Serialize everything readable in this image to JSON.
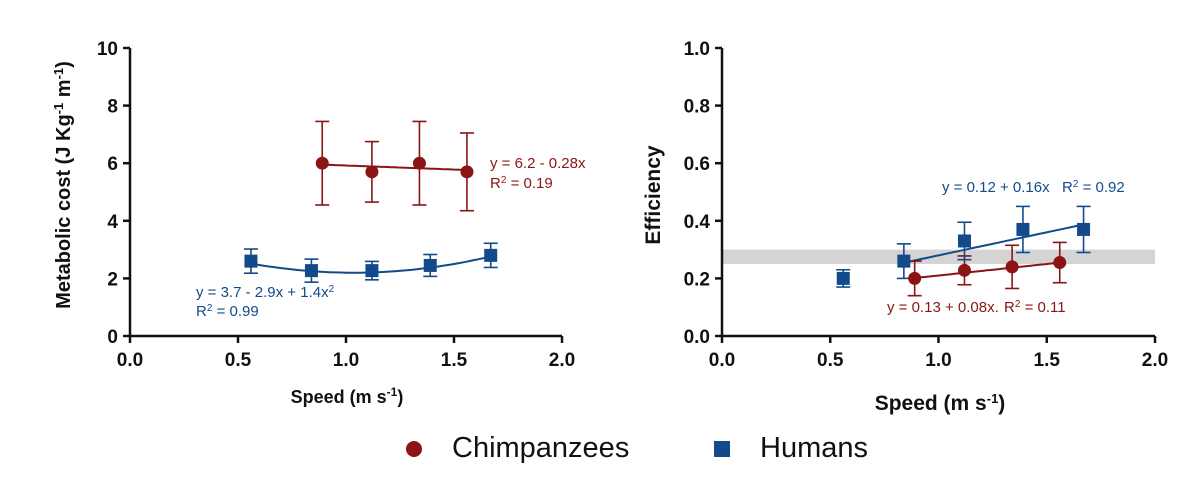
{
  "colors": {
    "chimp": "#8b1414",
    "human": "#124a8a",
    "band": "#d4d4d4",
    "axis": "#111111"
  },
  "legend": {
    "chimp_label": "Chimpanzees",
    "human_label": "Humans",
    "chimp_marker": "circle",
    "human_marker": "square"
  },
  "chart_data": [
    {
      "type": "scatter",
      "name": "metabolic-cost",
      "ylabel_main": "Metabolic cost (J Kg",
      "ylabel_sup1": "-1",
      "ylabel_mid": " m",
      "ylabel_sup2": "-1",
      "ylabel_end": ")",
      "xlabel_main": "Speed (m s",
      "xlabel_sup": "-1",
      "xlabel_end": ")",
      "xlim": [
        0,
        2
      ],
      "ylim": [
        0,
        10
      ],
      "xticks": [
        0,
        0.5,
        1.0,
        1.5,
        2.0
      ],
      "xtick_labels": [
        "0.0",
        "0.5",
        "1.0",
        "1.5",
        "2.0"
      ],
      "yticks": [
        0,
        2,
        4,
        6,
        8,
        10
      ],
      "ytick_labels": [
        "0",
        "2",
        "4",
        "6",
        "8",
        "10"
      ],
      "series": [
        {
          "name": "Chimpanzees",
          "marker": "circle",
          "x": [
            0.89,
            1.12,
            1.34,
            1.56
          ],
          "y": [
            6.0,
            5.7,
            6.0,
            5.7
          ],
          "err": [
            1.45,
            1.05,
            1.45,
            1.35
          ],
          "fit": {
            "type": "poly",
            "coef": [
              6.2,
              -0.28
            ],
            "range": [
              0.89,
              1.56
            ]
          },
          "eq_text": "y = 6.2 - 0.28x",
          "r2_pre": "R",
          "r2_sup": "2",
          "r2_post": " = 0.19"
        },
        {
          "name": "Humans",
          "marker": "square",
          "x": [
            0.56,
            0.84,
            1.12,
            1.39,
            1.67
          ],
          "y": [
            2.6,
            2.27,
            2.27,
            2.45,
            2.8
          ],
          "err": [
            0.42,
            0.4,
            0.32,
            0.38,
            0.42
          ],
          "fit": {
            "type": "poly",
            "coef": [
              3.7,
              -2.9,
              1.4
            ],
            "range": [
              0.56,
              1.67
            ]
          },
          "eq_pre": "y = 3.7 - 2.9x + 1.4x",
          "eq_sup": "2",
          "r2_pre": "R",
          "r2_sup": "2",
          "r2_post": " = 0.99"
        }
      ]
    },
    {
      "type": "scatter",
      "name": "efficiency",
      "ylabel_main": "Efficiency",
      "xlabel_main": "Speed (m s",
      "xlabel_sup": "-1",
      "xlabel_end": ")",
      "xlim": [
        0,
        2
      ],
      "ylim": [
        0,
        1
      ],
      "xticks": [
        0,
        0.5,
        1.0,
        1.5,
        2.0
      ],
      "xtick_labels": [
        "0.0",
        "0.5",
        "1.0",
        "1.5",
        "2.0"
      ],
      "yticks": [
        0,
        0.2,
        0.4,
        0.6,
        0.8,
        1.0
      ],
      "ytick_labels": [
        "0.0",
        "0.2",
        "0.4",
        "0.6",
        "0.8",
        "1.0"
      ],
      "band": [
        0.25,
        0.3
      ],
      "series": [
        {
          "name": "Chimpanzees",
          "marker": "circle",
          "x": [
            0.89,
            1.12,
            1.34,
            1.56
          ],
          "y": [
            0.2,
            0.228,
            0.24,
            0.255
          ],
          "err": [
            0.06,
            0.05,
            0.075,
            0.07
          ],
          "fit": {
            "type": "poly",
            "coef": [
              0.13,
              0.08
            ],
            "range": [
              0.89,
              1.56
            ]
          },
          "eq_text": "y = 0.13 + 0.08x.",
          "r2_pre": "R",
          "r2_sup": "2",
          "r2_post": " = 0.11"
        },
        {
          "name": "Humans",
          "marker": "square",
          "x": [
            0.56,
            0.84,
            1.12,
            1.39,
            1.67
          ],
          "y": [
            0.2,
            0.26,
            0.33,
            0.37,
            0.37
          ],
          "err": [
            0.03,
            0.06,
            0.065,
            0.08,
            0.08
          ],
          "fit": {
            "type": "poly",
            "coef": [
              0.12,
              0.16
            ],
            "range": [
              0.84,
              1.67
            ]
          },
          "eq_text": "y = 0.12 + 0.16x",
          "r2_pre": "R",
          "r2_sup": "2",
          "r2_post": " = 0.92"
        }
      ]
    }
  ]
}
